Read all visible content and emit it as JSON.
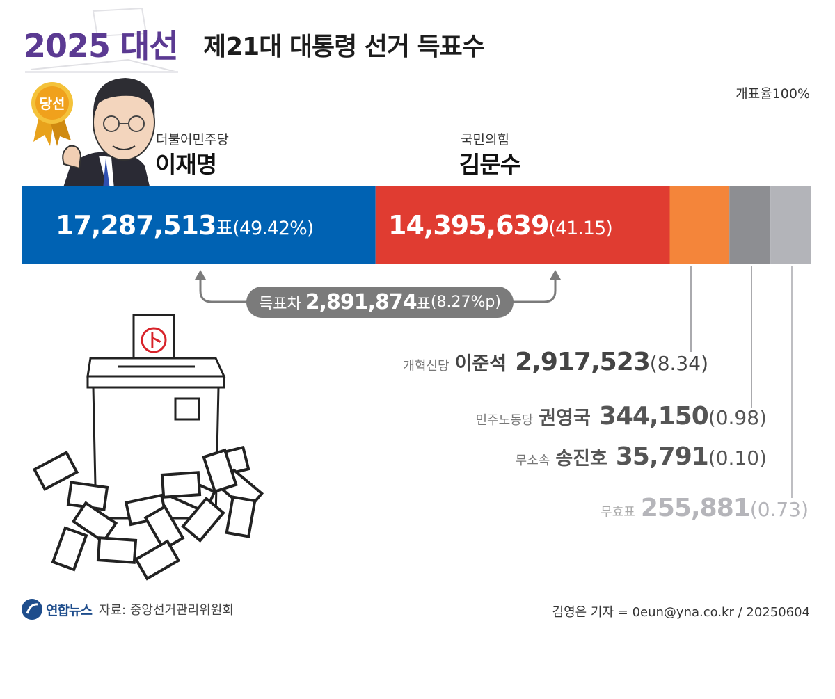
{
  "header": {
    "year_label": "2025 대선",
    "title": "제21대 대통령 선거 득표수",
    "count_rate": "개표율100%"
  },
  "winner_badge": "당선",
  "chart_data": {
    "type": "bar",
    "orientation": "horizontal-stacked",
    "title": "제21대 대통령 선거 득표수",
    "categories": [
      "이재명",
      "김문수",
      "이준석",
      "권영국",
      "송진호",
      "무효표"
    ],
    "values": [
      17287513,
      14395639,
      2917523,
      344150,
      35791,
      255881
    ],
    "percents": [
      49.42,
      41.15,
      8.34,
      0.98,
      0.1,
      0.73
    ],
    "colors": [
      "#0062b3",
      "#e03c31",
      "#f4853a",
      "#8d8e92",
      "#b3b4b9",
      "#b3b4b9"
    ]
  },
  "candidates": {
    "lee": {
      "party": "더불어민주당",
      "name": "이재명",
      "votes": "17,287,513",
      "unit": "표",
      "pct": "(49.42%)"
    },
    "kim": {
      "party": "국민의힘",
      "name": "김문수",
      "votes": "14,395,639",
      "pct": "(41.15)"
    },
    "lee_js": {
      "party": "개혁신당",
      "name": "이준석",
      "votes": "2,917,523",
      "pct": "(8.34)"
    },
    "kwon": {
      "party": "민주노동당",
      "name": "권영국",
      "votes": "344,150",
      "pct": "(0.98)"
    },
    "song": {
      "party": "무소속",
      "name": "송진호",
      "votes": "35,791",
      "pct": "(0.10)"
    },
    "invalid": {
      "label": "무효표",
      "votes": "255,881",
      "pct": "(0.73)"
    }
  },
  "difference": {
    "label": "득표차",
    "votes": "2,891,874",
    "unit": "표",
    "pct": "(8.27%p)"
  },
  "ballot_mark": "卜",
  "footer": {
    "logo": "연합뉴스",
    "source": "자료: 중앙선거관리위원회",
    "credit": "김영은 기자 = 0eun@yna.co.kr / 20250604"
  },
  "colors": {
    "accent_purple": "#5b3a92",
    "lee_blue": "#0062b3",
    "kim_red": "#e03c31",
    "lee_js_orange": "#f4853a",
    "gray": "#8d8e92",
    "light_gray": "#b3b4b9",
    "pill_gray": "#7b7b7b"
  },
  "icons": [
    "winner-medal-icon",
    "ballot-box-icon",
    "yonhap-logo-icon"
  ]
}
